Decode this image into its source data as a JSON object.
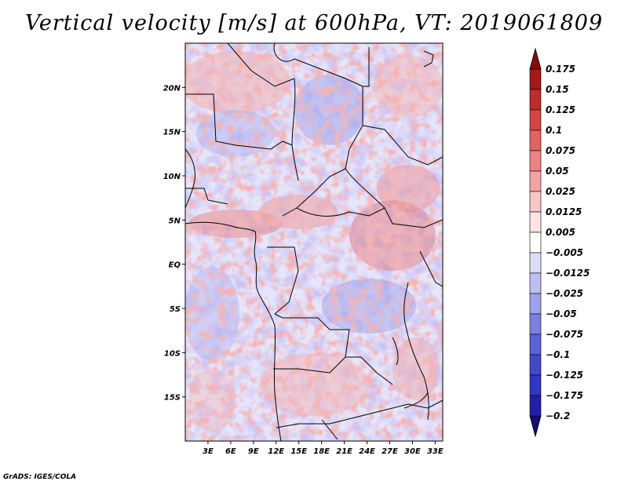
{
  "title": "Vertical velocity [m/s] at 600hPa, VT: 2019061809",
  "credit": "GrADS: IGES/COLA",
  "map": {
    "lon_range": [
      0,
      34
    ],
    "lat_range": [
      -20,
      25
    ],
    "lat_ticks": [
      {
        "value": 20,
        "label": "20N"
      },
      {
        "value": 15,
        "label": "15N"
      },
      {
        "value": 10,
        "label": "10N"
      },
      {
        "value": 5,
        "label": "5N"
      },
      {
        "value": 0,
        "label": "EQ"
      },
      {
        "value": -5,
        "label": "5S"
      },
      {
        "value": -10,
        "label": "10S"
      },
      {
        "value": -15,
        "label": "15S"
      }
    ],
    "lon_ticks": [
      {
        "value": 3,
        "label": "3E"
      },
      {
        "value": 6,
        "label": "6E"
      },
      {
        "value": 9,
        "label": "9E"
      },
      {
        "value": 12,
        "label": "12E"
      },
      {
        "value": 15,
        "label": "15E"
      },
      {
        "value": 18,
        "label": "18E"
      },
      {
        "value": 21,
        "label": "21E"
      },
      {
        "value": 24,
        "label": "24E"
      },
      {
        "value": 27,
        "label": "27E"
      },
      {
        "value": 30,
        "label": "30E"
      },
      {
        "value": 33,
        "label": "33E"
      }
    ]
  },
  "colorbar": {
    "levels": [
      {
        "label": "-0.2",
        "color": "#1a0f8c"
      },
      {
        "label": "-0.175",
        "color": "#221ea8"
      },
      {
        "label": "-0.125",
        "color": "#2f36c4"
      },
      {
        "label": "-0.1",
        "color": "#4148cc"
      },
      {
        "label": "-0.075",
        "color": "#5c62d8"
      },
      {
        "label": "-0.05",
        "color": "#7a80e2"
      },
      {
        "label": "-0.025",
        "color": "#9da1ec"
      },
      {
        "label": "-0.0125",
        "color": "#bcbff4"
      },
      {
        "label": "-0.005",
        "color": "#dcdcfa"
      },
      {
        "label": "0.005",
        "color": "#ffffff"
      },
      {
        "label": "0.0125",
        "color": "#fde4e4"
      },
      {
        "label": "0.025",
        "color": "#f9c6c6"
      },
      {
        "label": "0.05",
        "color": "#f4a3a3"
      },
      {
        "label": "0.075",
        "color": "#ee8282"
      },
      {
        "label": "0.1",
        "color": "#e46262"
      },
      {
        "label": "0.125",
        "color": "#d64444"
      },
      {
        "label": "0.15",
        "color": "#c22a2a"
      },
      {
        "label": "0.175",
        "color": "#a51818"
      }
    ],
    "top_color": "#8a0a0a",
    "bottom_color": "#140a78"
  }
}
